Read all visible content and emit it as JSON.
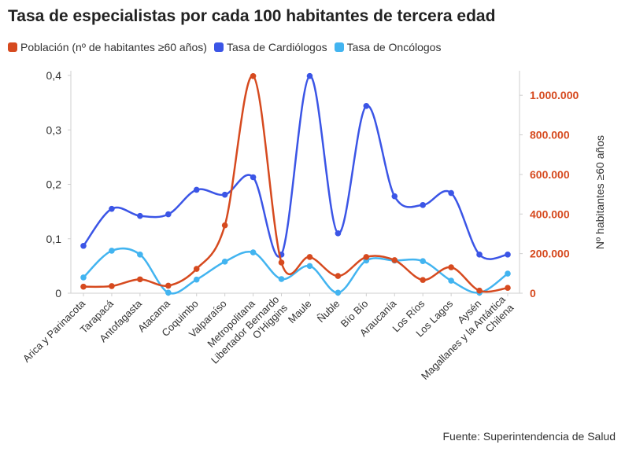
{
  "chart_data": {
    "type": "line",
    "title": "Tasa de especialistas por cada 100 habitantes de tercera edad",
    "source": "Fuente: Superintendencia de Salud",
    "categories": [
      "Arica y Parinacota",
      "Tarapacá",
      "Antofagasta",
      "Atacama",
      "Coquimbo",
      "Valparaíso",
      "Metropolitana",
      "Libertador Bernardo O'Higgins",
      "Maule",
      "Ñuble",
      "Bío Bío",
      "Araucanía",
      "Los Ríos",
      "Los Lagos",
      "Aysén",
      "Magallanes y la Antártica Chilena"
    ],
    "category_lines": [
      [
        "Arica y Parinacota"
      ],
      [
        "Tarapacá"
      ],
      [
        "Antofagasta"
      ],
      [
        "Atacama"
      ],
      [
        "Coquimbo"
      ],
      [
        "Valparaíso"
      ],
      [
        "Metropolitana"
      ],
      [
        "Libertador Bernardo",
        "O'Higgins"
      ],
      [
        "Maule"
      ],
      [
        "Ñuble"
      ],
      [
        "Bío Bío"
      ],
      [
        "Araucanía"
      ],
      [
        "Los Ríos"
      ],
      [
        "Los Lagos"
      ],
      [
        "Aysén"
      ],
      [
        "Magallanes y la Antártica",
        "Chilena"
      ]
    ],
    "series": [
      {
        "name": "Población (nº de habitantes ≥60 años)",
        "axis": "right",
        "color": "#d64a1f",
        "values": [
          33000,
          36000,
          70000,
          38000,
          123000,
          343000,
          1097000,
          155000,
          183000,
          87000,
          183000,
          167000,
          67000,
          131000,
          13000,
          27000
        ]
      },
      {
        "name": "Tasa de Cardiólogos",
        "axis": "left",
        "color": "#3b55e6",
        "values": [
          0.087,
          0.155,
          0.142,
          0.145,
          0.19,
          0.181,
          0.213,
          0.071,
          0.399,
          0.11,
          0.344,
          0.178,
          0.162,
          0.184,
          0.071,
          0.071
        ]
      },
      {
        "name": "Tasa de Oncólogos",
        "axis": "left",
        "color": "#42b4f0",
        "values": [
          0.029,
          0.078,
          0.071,
          0.001,
          0.025,
          0.058,
          0.075,
          0.026,
          0.05,
          0.001,
          0.06,
          0.06,
          0.059,
          0.023,
          0.001,
          0.036
        ]
      }
    ],
    "y_left": {
      "min": 0,
      "max": 0.4,
      "ticks": [
        "0",
        "0,1",
        "0,2",
        "0,3",
        "0,4"
      ]
    },
    "y_right": {
      "min": 0,
      "max": 1100000,
      "ticks": [
        "0",
        "200.000",
        "400.000",
        "600.000",
        "800.000",
        "1.000.000"
      ],
      "label": "Nº habitantes ≥60 años",
      "color": "#d64a1f"
    },
    "legend_position": "top-left",
    "grid": false
  }
}
